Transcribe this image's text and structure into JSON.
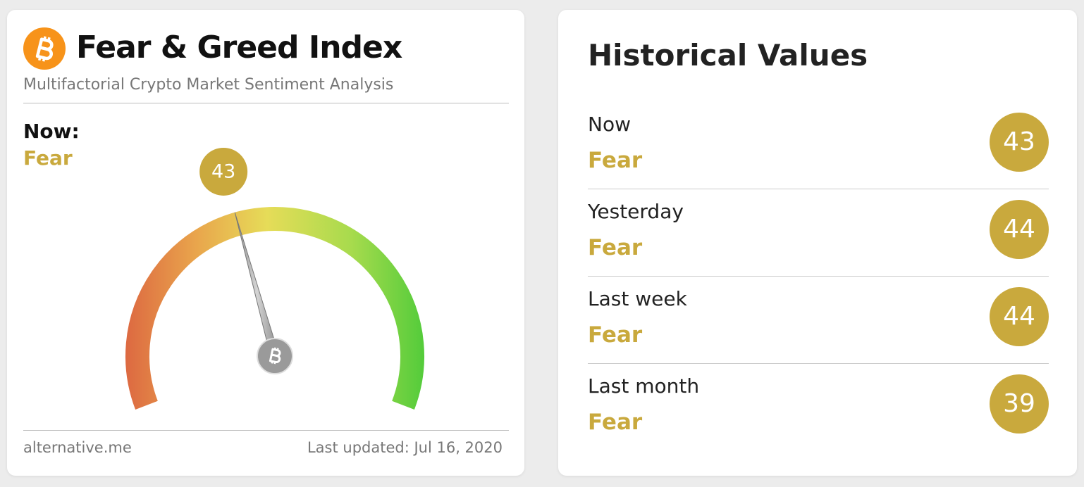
{
  "widget": {
    "title": "Fear & Greed Index",
    "subtitle": "Multifactorial Crypto Market Sentiment Analysis",
    "now_label": "Now:",
    "now_classification": "Fear",
    "gauge": {
      "value": 43,
      "range": [
        0,
        100
      ]
    },
    "footer_left": "alternative.me",
    "footer_right": "Last updated: Jul 16, 2020"
  },
  "history": {
    "title": "Historical Values",
    "rows": [
      {
        "label": "Now",
        "classification": "Fear",
        "value": 43
      },
      {
        "label": "Yesterday",
        "classification": "Fear",
        "value": 44
      },
      {
        "label": "Last week",
        "classification": "Fear",
        "value": 44
      },
      {
        "label": "Last month",
        "classification": "Fear",
        "value": 39
      }
    ]
  }
}
